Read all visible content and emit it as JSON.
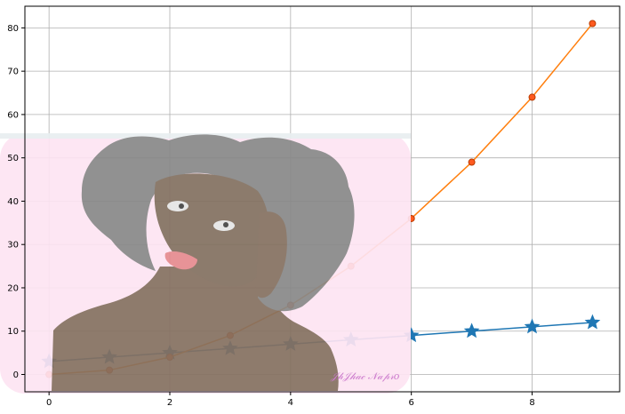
{
  "chart_data": {
    "type": "line",
    "title": "",
    "xlabel": "",
    "ylabel": "",
    "xlim": [
      -0.4,
      9.45
    ],
    "ylim": [
      -4,
      85
    ],
    "grid": true,
    "x_ticks": [
      0,
      2,
      4,
      6,
      8
    ],
    "y_ticks": [
      0,
      10,
      20,
      30,
      40,
      50,
      60,
      70,
      80
    ],
    "x_tick_labels": [
      "0",
      "2",
      "4",
      "6",
      "8"
    ],
    "y_tick_labels": [
      "0",
      "10",
      "20",
      "30",
      "40",
      "50",
      "60",
      "70",
      "80"
    ],
    "series": [
      {
        "x": [
          0,
          1,
          2,
          3,
          4,
          5,
          6,
          7,
          8,
          9
        ],
        "values": [
          3,
          4,
          5,
          6,
          7,
          8,
          9,
          10,
          11,
          12
        ],
        "marker": "star",
        "color": "#1f77b4"
      },
      {
        "x": [
          0,
          1,
          2,
          3,
          4,
          5,
          6,
          7,
          8,
          9
        ],
        "values": [
          0,
          1,
          4,
          9,
          16,
          25,
          36,
          49,
          64,
          81
        ],
        "marker": "circle",
        "color": "#ff7f0e",
        "marker_fill": "#ff5a1f",
        "marker_edge": "#b83a00"
      }
    ],
    "overlay_image": {
      "description_icon": "woman-portrait-illustration",
      "watermark_text": "𝒥𝒽𝒥𝒽𝒶𝒸 𝒩𝒶𝓅𝓇𝑜",
      "bg_color": "#fde4f2",
      "hair_color": "#888888",
      "skin_color": "#857060"
    }
  }
}
